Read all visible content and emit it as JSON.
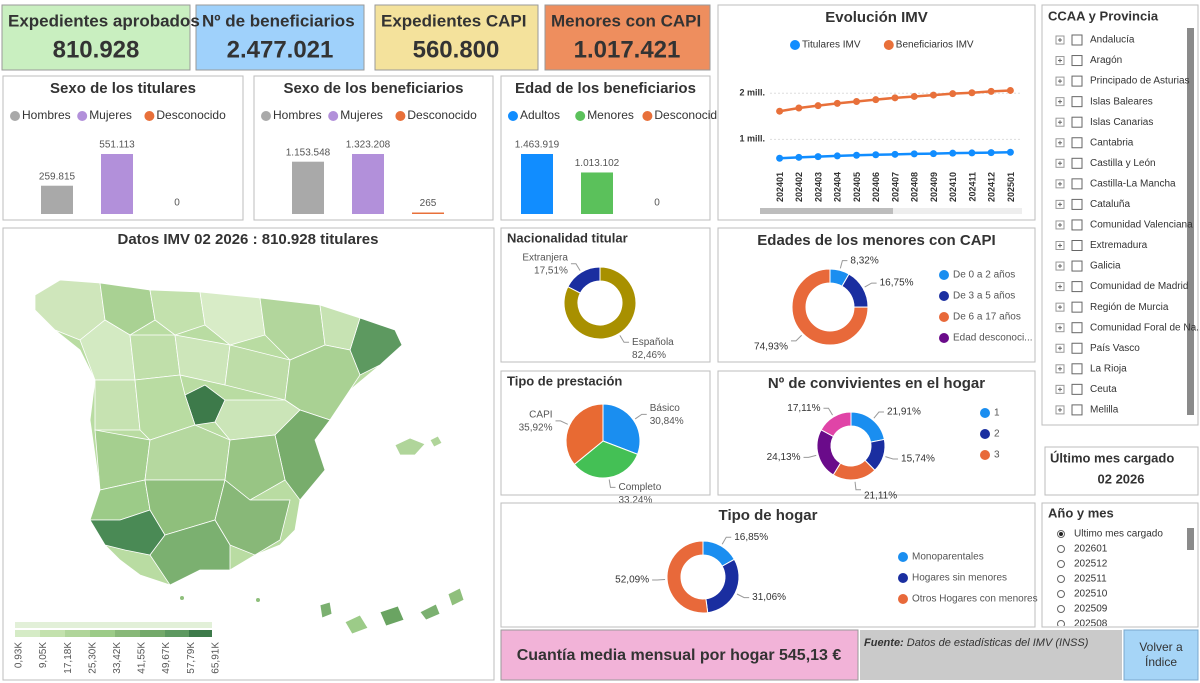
{
  "kpis": [
    {
      "label": "Expedientes aprobados",
      "value": "810.928"
    },
    {
      "label": "Nº de beneficiarios",
      "value": "2.477.021"
    },
    {
      "label": "Expedientes CAPI",
      "value": "560.800"
    },
    {
      "label": "Menores con CAPI",
      "value": "1.017.421"
    }
  ],
  "chart_data": [
    {
      "type": "bar",
      "title": "Sexo de los titulares",
      "categories": [
        "Hombres",
        "Mujeres",
        "Desconocido"
      ],
      "colors": [
        "#a9a9a9",
        "#b290da",
        "#e8703a"
      ],
      "values": [
        259815,
        551113,
        0
      ],
      "value_labels": [
        "259.815",
        "551.113",
        "0"
      ]
    },
    {
      "type": "bar",
      "title": "Sexo de los beneficiarios",
      "categories": [
        "Hombres",
        "Mujeres",
        "Desconocido"
      ],
      "colors": [
        "#a9a9a9",
        "#b290da",
        "#e8703a"
      ],
      "values": [
        1153548,
        1323208,
        265
      ],
      "value_labels": [
        "1.153.548",
        "1.323.208",
        "265"
      ]
    },
    {
      "type": "bar",
      "title": "Edad de los beneficiarios",
      "categories": [
        "Adultos",
        "Menores",
        "Desconocido"
      ],
      "colors": [
        "#118dff",
        "#5bc15b",
        "#e8703a"
      ],
      "values": [
        1463919,
        1013102,
        0
      ],
      "value_labels": [
        "1.463.919",
        "1.013.102",
        "0"
      ]
    },
    {
      "type": "line",
      "title": "Evolución IMV",
      "categories": [
        "202401",
        "202402",
        "202403",
        "202404",
        "202405",
        "202406",
        "202407",
        "202408",
        "202409",
        "202410",
        "202411",
        "202412",
        "202501"
      ],
      "series": [
        {
          "name": "Titulares IMV",
          "color": "#118dff",
          "values": [
            590000,
            610000,
            625000,
            640000,
            655000,
            665000,
            675000,
            685000,
            690000,
            700000,
            705000,
            712000,
            720000
          ]
        },
        {
          "name": "Beneficiarios IMV",
          "color": "#e8703a",
          "values": [
            1610000,
            1680000,
            1730000,
            1780000,
            1820000,
            1860000,
            1900000,
            1930000,
            1960000,
            1990000,
            2010000,
            2040000,
            2060000
          ]
        }
      ],
      "ylim": [
        400000,
        2200000
      ],
      "yticks": [
        {
          "value": 1000000,
          "label": "1 mill."
        },
        {
          "value": 2000000,
          "label": "2 mill."
        }
      ],
      "grid": true
    },
    {
      "type": "donut",
      "title": "Nacionalidad titular",
      "categories": [
        "Española",
        "Extranjera"
      ],
      "colors": [
        "#a89000",
        "#1a2ea0"
      ],
      "values": [
        82.46,
        17.51
      ],
      "value_labels": [
        "82,46%",
        "17,51%"
      ]
    },
    {
      "type": "pie",
      "title": "Tipo de prestación",
      "categories": [
        "Básico",
        "Completo",
        "CAPI"
      ],
      "colors": [
        "#1a8ef0",
        "#44c055",
        "#e86a33"
      ],
      "values": [
        30.84,
        33.24,
        35.92
      ],
      "value_labels": [
        "30,84%",
        "33,24%",
        "35,92%"
      ]
    },
    {
      "type": "donut",
      "title": "Edades de los menores con CAPI",
      "categories": [
        "De 0 a 2 años",
        "De 3 a 5 años",
        "De 6 a 17 años",
        "Edad desconoci..."
      ],
      "colors": [
        "#1a8ef0",
        "#1a2ea0",
        "#e8693a",
        "#6a0b8a"
      ],
      "values": [
        8.32,
        16.75,
        74.93,
        0
      ],
      "value_labels": [
        "8,32%",
        "16,75%",
        "74,93%",
        null
      ]
    },
    {
      "type": "donut",
      "title": "Nº de convivientes en el hogar",
      "categories": [
        "1",
        "2",
        "3",
        null,
        null
      ],
      "colors": [
        "#1a8ef0",
        "#1a2ea0",
        "#e8693a",
        "#6a0b8a",
        "#e044a7"
      ],
      "values": [
        21.91,
        15.74,
        21.11,
        24.13,
        17.11
      ],
      "value_labels": [
        "21,91%",
        "15,74%",
        "21,11%",
        "24,13%",
        "17,11%"
      ]
    },
    {
      "type": "donut",
      "title": "Tipo de hogar",
      "categories": [
        "Monoparentales",
        "Hogares sin menores",
        "Otros Hogares con menores"
      ],
      "colors": [
        "#1a8ef0",
        "#1a2ea0",
        "#e8693a"
      ],
      "values": [
        16.85,
        31.06,
        52.09
      ],
      "value_labels": [
        "16,85%",
        "31,06%",
        "52,09%"
      ]
    }
  ],
  "map": {
    "title": "Datos IMV 02 2026 : 810.928 titulares",
    "legend_labels": [
      "0,93K",
      "9,05K",
      "17,18K",
      "25,30K",
      "33,42K",
      "41,55K",
      "49,67K",
      "57,79K",
      "65,91K"
    ]
  },
  "ccaa_slicer": {
    "title": "CCAA y Provincia",
    "items": [
      "Andalucía",
      "Aragón",
      "Principado de Asturias",
      "Islas Baleares",
      "Islas Canarias",
      "Cantabria",
      "Castilla y León",
      "Castilla-La Mancha",
      "Cataluña",
      "Comunidad Valenciana",
      "Extremadura",
      "Galicia",
      "Comunidad de Madrid",
      "Región de Murcia",
      "Comunidad Foral de Na...",
      "País Vasco",
      "La Rioja",
      "Ceuta",
      "Melilla"
    ]
  },
  "last_month": {
    "title": "Último mes cargado",
    "value": "02 2026"
  },
  "month_slicer": {
    "title": "Año y mes",
    "items": [
      "Ultimo mes cargado",
      "202601",
      "202512",
      "202511",
      "202510",
      "202509",
      "202508"
    ],
    "selected": 0
  },
  "footer": {
    "amount_text": "Cuantía media mensual por hogar 545,13 €",
    "source_label": "Fuente:",
    "source_text": " Datos de estadísticas del IMV (INSS)",
    "button_lines": [
      "Volver a",
      "Índice"
    ]
  }
}
